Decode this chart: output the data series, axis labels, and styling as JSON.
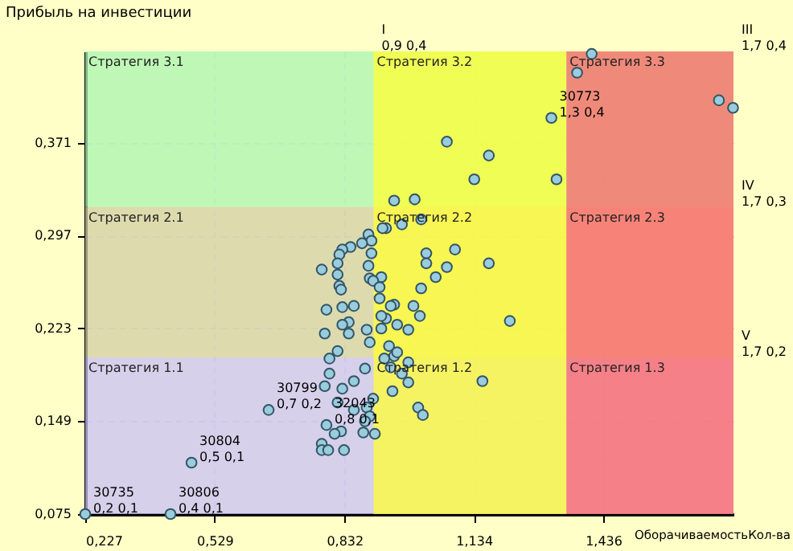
{
  "chart_data": {
    "type": "scatter",
    "xlabel": "ОборачиваемостьКол-ва",
    "ylabel": "Прибыль на инвестиции",
    "marker": "circle",
    "grid": true,
    "xlim": [
      0.227,
      1.74
    ],
    "ylim": [
      0.075,
      0.444
    ],
    "xticks": [
      {
        "value": 0.227,
        "label": "0,227"
      },
      {
        "value": 0.529,
        "label": "0,529"
      },
      {
        "value": 0.832,
        "label": "0,832"
      },
      {
        "value": 1.134,
        "label": "1,134"
      },
      {
        "value": 1.436,
        "label": "1,436"
      }
    ],
    "yticks": [
      {
        "value": 0.075,
        "label": "0,075"
      },
      {
        "value": 0.149,
        "label": "0,149"
      },
      {
        "value": 0.223,
        "label": "0,223"
      },
      {
        "value": 0.297,
        "label": "0,297"
      },
      {
        "value": 0.371,
        "label": "0,371"
      }
    ],
    "bands": [
      {
        "axis": "y",
        "from": 0.32,
        "to": 0.444,
        "color": "#aaf5b0"
      },
      {
        "axis": "y",
        "from": 0.2,
        "to": 0.32,
        "color": "#d2cfa6"
      },
      {
        "axis": "y",
        "from": 0.075,
        "to": 0.2,
        "color": "#c8c0f5"
      },
      {
        "axis": "x",
        "from": 0.9,
        "to": 1.35,
        "color": "#ffff33"
      },
      {
        "axis": "x",
        "from": 1.35,
        "to": 1.74,
        "color": "#ff6666"
      }
    ],
    "annotations": [
      {
        "text": "Стратегия 3.1",
        "x": 0.227,
        "y": 0.444
      },
      {
        "text": "Стратегия 3.2",
        "x": 0.9,
        "y": 0.444
      },
      {
        "text": "Стратегия 3.3",
        "x": 1.35,
        "y": 0.444
      },
      {
        "text": "Стратегия 2.1",
        "x": 0.227,
        "y": 0.32
      },
      {
        "text": "Стратегия 2.2",
        "x": 0.9,
        "y": 0.32
      },
      {
        "text": "Стратегия 2.3",
        "x": 1.35,
        "y": 0.32
      },
      {
        "text": "Стратегия 1.1",
        "x": 0.227,
        "y": 0.2
      },
      {
        "text": "Стратегия 1.2",
        "x": 0.9,
        "y": 0.2
      },
      {
        "text": "Стратегия 1.3",
        "x": 1.35,
        "y": 0.2
      },
      {
        "text": "I\n0,9 0,4",
        "x": 0.9,
        "y": 0.444
      },
      {
        "text": "III\n1,7 0,4",
        "x": 1.74,
        "y": 0.444
      },
      {
        "text": "IV\n1,7 0,3",
        "x": 1.74,
        "y": 0.32
      },
      {
        "text": "V\n1,7 0,2",
        "x": 1.74,
        "y": 0.2
      },
      {
        "text": "30773\n1,3 0,4",
        "x": 1.315,
        "y": 0.391
      },
      {
        "text": "30799\n0,7 0,2",
        "x": 0.655,
        "y": 0.158
      },
      {
        "text": "30804\n0,5 0,1",
        "x": 0.475,
        "y": 0.116
      },
      {
        "text": "30806\n0,4 0,1",
        "x": 0.426,
        "y": 0.075
      },
      {
        "text": "30735\n0,2 0,1",
        "x": 0.227,
        "y": 0.075
      },
      {
        "text": "32043\n0,8 0,1",
        "x": 0.79,
        "y": 0.146
      }
    ],
    "series": [
      {
        "color": "#99ccdd",
        "x": [
          0.227,
          0.426,
          0.475,
          0.655,
          0.79,
          1.315,
          1.375,
          1.409,
          1.706,
          1.739,
          1.071,
          1.169,
          1.135,
          1.327,
          0.948,
          0.996,
          0.966,
          1.011,
          0.929,
          1.023,
          1.09,
          1.023,
          1.071,
          1.169,
          1.045,
          1.011,
          0.948,
          0.993,
          1.008,
          0.929,
          0.981,
          1.218,
          0.936,
          0.948,
          0.981,
          0.94,
          0.966,
          0.981,
          0.944,
          1.154,
          1.004,
          1.015,
          0.921,
          0.888,
          0.895,
          0.873,
          0.846,
          0.827,
          0.82,
          0.895,
          0.816,
          0.779,
          0.888,
          0.816,
          0.891,
          0.918,
          0.82,
          0.899,
          0.914,
          0.824,
          0.914,
          0.854,
          0.827,
          0.79,
          0.94,
          0.918,
          0.842,
          0.827,
          0.918,
          0.884,
          0.955,
          0.786,
          0.842,
          0.891,
          0.955,
          0.816,
          0.797,
          0.925,
          0.88,
          0.797,
          0.854,
          0.786,
          0.827,
          0.899,
          0.816,
          0.884,
          0.854,
          0.891,
          0.88,
          0.824,
          0.809,
          0.876,
          0.903,
          0.779,
          0.779,
          0.794,
          0.831
        ],
        "values": [
          0.075,
          0.075,
          0.116,
          0.158,
          0.146,
          0.391,
          0.427,
          0.442,
          0.405,
          0.399,
          0.372,
          0.361,
          0.342,
          0.342,
          0.325,
          0.326,
          0.306,
          0.31,
          0.303,
          0.283,
          0.286,
          0.275,
          0.272,
          0.275,
          0.264,
          0.255,
          0.242,
          0.241,
          0.233,
          0.231,
          0.222,
          0.229,
          0.209,
          0.201,
          0.196,
          0.192,
          0.187,
          0.18,
          0.173,
          0.181,
          0.16,
          0.154,
          0.303,
          0.298,
          0.293,
          0.291,
          0.288,
          0.286,
          0.282,
          0.283,
          0.275,
          0.27,
          0.273,
          0.266,
          0.263,
          0.264,
          0.257,
          0.261,
          0.256,
          0.254,
          0.247,
          0.241,
          0.24,
          0.238,
          0.241,
          0.233,
          0.228,
          0.226,
          0.223,
          0.222,
          0.226,
          0.219,
          0.219,
          0.212,
          0.204,
          0.205,
          0.199,
          0.199,
          0.191,
          0.187,
          0.181,
          0.177,
          0.175,
          0.167,
          0.164,
          0.16,
          0.158,
          0.153,
          0.149,
          0.141,
          0.139,
          0.14,
          0.139,
          0.131,
          0.126,
          0.126,
          0.126
        ]
      }
    ]
  }
}
